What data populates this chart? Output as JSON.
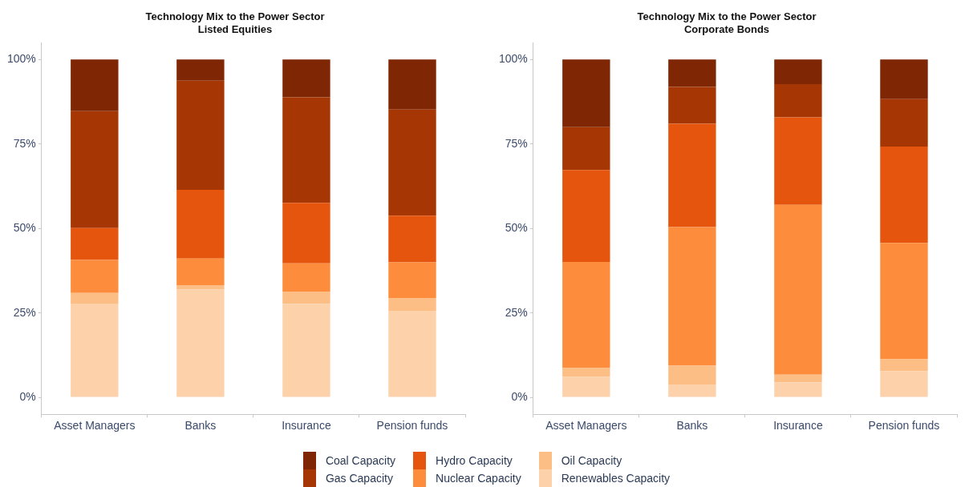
{
  "chart_data": [
    {
      "type": "bar",
      "title": "Technology Mix to the Power Sector",
      "subtitle": "Listed Equities",
      "stacked": true,
      "legend": "bottom",
      "grid": false,
      "categories": [
        "Asset Managers",
        "Banks",
        "Insurance",
        "Pension funds"
      ],
      "ylim": [
        -5,
        105
      ],
      "yticks": [
        {
          "value": 0,
          "label": "0%"
        },
        {
          "value": 25,
          "label": "25%"
        },
        {
          "value": 50,
          "label": "50%"
        },
        {
          "value": 75,
          "label": "75%"
        },
        {
          "value": 100,
          "label": "100%"
        }
      ],
      "series": [
        {
          "name": "Renewables Capacity",
          "color": "#fdd2ab",
          "values": [
            27.6,
            32.0,
            27.7,
            25.6
          ]
        },
        {
          "name": "Oil Capacity",
          "color": "#fdbe85",
          "values": [
            3.3,
            1.2,
            3.6,
            3.8
          ]
        },
        {
          "name": "Nuclear Capacity",
          "color": "#fd8d3c",
          "values": [
            9.8,
            7.9,
            8.4,
            10.6
          ]
        },
        {
          "name": "Hydro Capacity",
          "color": "#e6550d",
          "values": [
            9.4,
            20.3,
            17.9,
            13.8
          ]
        },
        {
          "name": "Gas Capacity",
          "color": "#a63603",
          "values": [
            34.6,
            32.3,
            31.2,
            31.4
          ]
        },
        {
          "name": "Coal Capacity",
          "color": "#7f2704",
          "values": [
            15.3,
            6.3,
            11.2,
            14.8
          ]
        }
      ]
    },
    {
      "type": "bar",
      "title": "Technology Mix to the Power Sector",
      "subtitle": "Corporate Bonds",
      "stacked": true,
      "legend": "bottom",
      "grid": false,
      "categories": [
        "Asset Managers",
        "Banks",
        "Insurance",
        "Pension funds"
      ],
      "ylim": [
        -5,
        105
      ],
      "yticks": [
        {
          "value": 0,
          "label": "0%"
        },
        {
          "value": 25,
          "label": "25%"
        },
        {
          "value": 50,
          "label": "50%"
        },
        {
          "value": 75,
          "label": "75%"
        },
        {
          "value": 100,
          "label": "100%"
        }
      ],
      "series": [
        {
          "name": "Renewables Capacity",
          "color": "#fdd2ab",
          "values": [
            6.1,
            3.8,
            4.5,
            7.8
          ]
        },
        {
          "name": "Oil Capacity",
          "color": "#fdbe85",
          "values": [
            2.6,
            5.6,
            2.2,
            3.5
          ]
        },
        {
          "name": "Nuclear Capacity",
          "color": "#fd8d3c",
          "values": [
            31.4,
            41.0,
            50.3,
            34.4
          ]
        },
        {
          "name": "Hydro Capacity",
          "color": "#e6550d",
          "values": [
            27.2,
            30.6,
            25.9,
            28.5
          ]
        },
        {
          "name": "Gas Capacity",
          "color": "#a63603",
          "values": [
            12.7,
            10.9,
            9.8,
            14.1
          ]
        },
        {
          "name": "Coal Capacity",
          "color": "#7f2704",
          "values": [
            20.0,
            8.1,
            7.3,
            11.7
          ]
        }
      ]
    }
  ]
}
